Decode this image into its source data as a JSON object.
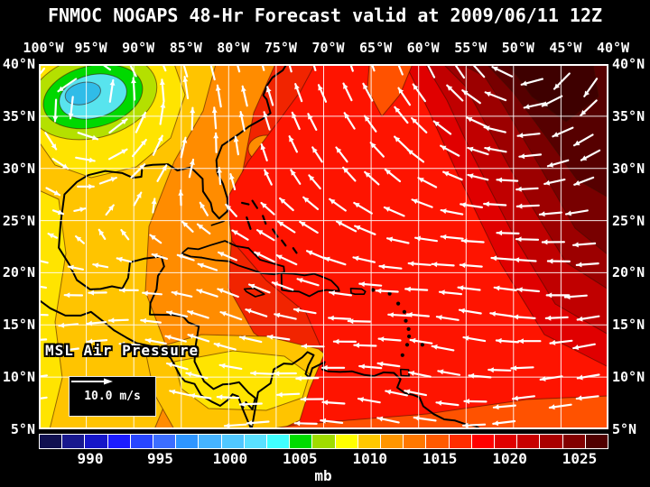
{
  "title": "FNMOC NOGAPS 48-Hr Forecast valid at 2009/06/11 12Z",
  "map": {
    "lon_ticks": [
      "100°W",
      "95°W",
      "90°W",
      "85°W",
      "80°W",
      "75°W",
      "70°W",
      "65°W",
      "60°W",
      "55°W",
      "50°W",
      "45°W",
      "40°W"
    ],
    "lat_ticks": [
      "40°N",
      "35°N",
      "30°N",
      "25°N",
      "20°N",
      "15°N",
      "10°N",
      "5°N"
    ],
    "field_label": "MSL Air Pressure",
    "wind_scale_label": "10.0 m/s",
    "coastlines": {
      "mainland": [
        [
          73.9,
          40
        ],
        [
          74.3,
          39.4
        ],
        [
          75.4,
          38.7
        ],
        [
          76,
          37.9
        ],
        [
          76.35,
          37
        ],
        [
          76,
          36.6
        ],
        [
          75.6,
          35.3
        ],
        [
          76.5,
          34.7
        ],
        [
          77.9,
          34
        ],
        [
          78.9,
          33.3
        ],
        [
          80.7,
          32.2
        ],
        [
          81.3,
          30.8
        ],
        [
          81.2,
          29.6
        ],
        [
          80.6,
          28.5
        ],
        [
          80.1,
          27
        ],
        [
          80.15,
          25.9
        ],
        [
          81,
          25.2
        ],
        [
          81.7,
          25.9
        ],
        [
          81.9,
          26.7
        ],
        [
          82.7,
          27.8
        ],
        [
          82.75,
          29
        ],
        [
          84,
          30.1
        ],
        [
          85.4,
          29.8
        ],
        [
          86.4,
          30.4
        ],
        [
          88,
          30.35
        ],
        [
          89.1,
          30.2
        ],
        [
          89.2,
          29.2
        ],
        [
          90.1,
          29.1
        ],
        [
          91.2,
          29.55
        ],
        [
          93,
          29.75
        ],
        [
          94.8,
          29.35
        ],
        [
          96,
          28.7
        ],
        [
          97.3,
          27.5
        ],
        [
          97.7,
          24.8
        ],
        [
          97.9,
          22.4
        ],
        [
          96.8,
          20.8
        ],
        [
          96,
          19.3
        ],
        [
          94.6,
          18.4
        ],
        [
          93.5,
          18.45
        ],
        [
          92.3,
          18.7
        ],
        [
          91.2,
          18.5
        ],
        [
          90.6,
          19.5
        ],
        [
          90.4,
          21
        ],
        [
          88.9,
          21.35
        ],
        [
          87.1,
          21.55
        ],
        [
          86.8,
          20.6
        ],
        [
          87.45,
          19.7
        ],
        [
          87.6,
          18.4
        ],
        [
          88.25,
          17.1
        ],
        [
          88.3,
          16
        ],
        [
          85.9,
          15.95
        ],
        [
          84.8,
          15.8
        ],
        [
          84.25,
          15.25
        ],
        [
          83.15,
          14.85
        ],
        [
          83.5,
          12.9
        ],
        [
          83.6,
          11.5
        ],
        [
          82.6,
          9.6
        ],
        [
          81.6,
          8.85
        ],
        [
          80.6,
          9.3
        ],
        [
          79.8,
          9.35
        ],
        [
          78.9,
          9.5
        ],
        [
          77.9,
          8.5
        ],
        [
          77.2,
          8
        ],
        [
          77.5,
          6.9
        ],
        [
          78.2,
          7.6
        ],
        [
          78.55,
          7
        ],
        [
          77.9,
          5.6
        ],
        [
          77.6,
          5
        ]
      ],
      "pacific": [
        [
          100,
          17.4
        ],
        [
          98.8,
          16.6
        ],
        [
          97.2,
          15.9
        ],
        [
          95.6,
          15.9
        ],
        [
          94.5,
          16.25
        ],
        [
          93.1,
          15.25
        ],
        [
          92.1,
          14.5
        ],
        [
          90.8,
          13.8
        ],
        [
          89.7,
          13.25
        ],
        [
          88.1,
          12.95
        ],
        [
          87,
          12.5
        ],
        [
          86.1,
          11.8
        ],
        [
          85.65,
          11.05
        ],
        [
          85.1,
          10.1
        ],
        [
          84.6,
          9.6
        ],
        [
          83.6,
          9.35
        ],
        [
          82.9,
          8.25
        ],
        [
          81.8,
          7.65
        ],
        [
          80.9,
          7.25
        ],
        [
          80.1,
          7.8
        ],
        [
          79.6,
          8.35
        ],
        [
          79,
          8.15
        ],
        [
          78.55,
          7
        ]
      ],
      "cuba": [
        [
          84.95,
          21.85
        ],
        [
          84.3,
          22.35
        ],
        [
          83.2,
          22.25
        ],
        [
          81.9,
          22.65
        ],
        [
          80.4,
          23.05
        ],
        [
          79.2,
          22.55
        ],
        [
          77.9,
          22.35
        ],
        [
          76.7,
          21.25
        ],
        [
          75.6,
          20.95
        ],
        [
          74.2,
          20.6
        ],
        [
          74.15,
          20.05
        ],
        [
          75.2,
          19.85
        ],
        [
          76.5,
          19.95
        ],
        [
          77.8,
          20.35
        ],
        [
          79,
          20.7
        ],
        [
          80,
          21.1
        ],
        [
          81.4,
          21.2
        ],
        [
          82.8,
          21.45
        ],
        [
          84,
          21.55
        ],
        [
          84.95,
          21.85
        ]
      ],
      "hispaniola": [
        [
          74.45,
          19.95
        ],
        [
          73.2,
          19.9
        ],
        [
          72,
          19.75
        ],
        [
          71,
          19.9
        ],
        [
          70.1,
          19.6
        ],
        [
          69.2,
          19.25
        ],
        [
          68.5,
          18.6
        ],
        [
          68.35,
          18.25
        ],
        [
          69.7,
          18.35
        ],
        [
          70.6,
          18.2
        ],
        [
          71.5,
          17.75
        ],
        [
          72.6,
          18.2
        ],
        [
          73.7,
          18.25
        ],
        [
          74.4,
          18.35
        ],
        [
          74.45,
          19.95
        ]
      ],
      "jamaica": [
        [
          78.35,
          18.45
        ],
        [
          77.3,
          18.5
        ],
        [
          76.25,
          17.95
        ],
        [
          77.2,
          17.7
        ],
        [
          78.15,
          18.2
        ],
        [
          78.35,
          18.45
        ]
      ],
      "puerto_rico": [
        [
          67.15,
          18.5
        ],
        [
          66,
          18.45
        ],
        [
          65.6,
          18.2
        ],
        [
          65.75,
          17.95
        ],
        [
          66.7,
          17.95
        ],
        [
          67.1,
          18.05
        ],
        [
          67.15,
          18.5
        ]
      ],
      "florida_keys": [
        [
          81.8,
          24.55
        ],
        [
          80.5,
          24.95
        ]
      ],
      "trinidad": [
        [
          61.9,
          10.75
        ],
        [
          61.05,
          10.7
        ],
        [
          61,
          10.1
        ],
        [
          61.85,
          10.15
        ],
        [
          61.9,
          10.75
        ]
      ],
      "south_america": [
        [
          77.6,
          5
        ],
        [
          77.4,
          6
        ],
        [
          76.9,
          8.55
        ],
        [
          75.6,
          9.4
        ],
        [
          75.25,
          10.75
        ],
        [
          74.2,
          11.3
        ],
        [
          73.3,
          11.25
        ],
        [
          72.25,
          11.9
        ],
        [
          71.7,
          12.4
        ],
        [
          71.05,
          12.1
        ],
        [
          71.6,
          11.15
        ],
        [
          71.9,
          10.3
        ],
        [
          71.5,
          9.95
        ],
        [
          71.2,
          10.85
        ],
        [
          70.2,
          11.3
        ],
        [
          69.9,
          11.45
        ],
        [
          70.15,
          10.75
        ],
        [
          69.5,
          10.55
        ],
        [
          68.3,
          10.5
        ],
        [
          67,
          10.55
        ],
        [
          65.7,
          10.2
        ],
        [
          64.7,
          10.1
        ],
        [
          63.7,
          10.45
        ],
        [
          62.6,
          10.4
        ],
        [
          61.9,
          9.8
        ],
        [
          62.25,
          9
        ],
        [
          61.4,
          8.45
        ],
        [
          60.6,
          8.3
        ],
        [
          59.9,
          8.05
        ],
        [
          59.5,
          7.2
        ],
        [
          58.4,
          6.45
        ],
        [
          57.3,
          5.95
        ],
        [
          56.2,
          5.85
        ],
        [
          55.1,
          5.5
        ],
        [
          54,
          5.3
        ],
        [
          53.4,
          5
        ]
      ],
      "bahamas_segments": [
        [
          [
            78.6,
            26.7
          ],
          [
            77.9,
            26.55
          ]
        ],
        [
          [
            77.5,
            26.9
          ],
          [
            77,
            26.2
          ]
        ],
        [
          [
            78.1,
            25.3
          ],
          [
            77.7,
            24.2
          ]
        ],
        [
          [
            76.4,
            25.45
          ],
          [
            76.1,
            24.7
          ]
        ],
        [
          [
            75.35,
            24.15
          ],
          [
            74.85,
            23.45
          ]
        ],
        [
          [
            74.4,
            23.1
          ],
          [
            74,
            22.6
          ]
        ],
        [
          [
            73.2,
            22.35
          ],
          [
            72.85,
            21.9
          ]
        ]
      ],
      "antilles_islets": [
        [
          61.5,
          16.25
        ],
        [
          61.35,
          15.4
        ],
        [
          61.05,
          14.6
        ],
        [
          61,
          13.9
        ],
        [
          61.2,
          13.1
        ],
        [
          61.7,
          12.1
        ],
        [
          62.15,
          17.05
        ],
        [
          63.05,
          18.0
        ],
        [
          64.8,
          18.35
        ],
        [
          59.6,
          13.1
        ]
      ]
    }
  },
  "colorbar": {
    "units_label": "mb",
    "ticks": [
      "990",
      "995",
      "1000",
      "1005",
      "1010",
      "1015",
      "1020",
      "1025"
    ],
    "segment_colors": [
      "#101050",
      "#18188e",
      "#1616c8",
      "#1c1cff",
      "#2846ff",
      "#3c6eff",
      "#2e96ff",
      "#46b4ff",
      "#50c8ff",
      "#5ae1ff",
      "#40ffff",
      "#00dc00",
      "#a0dc00",
      "#ffff00",
      "#ffc800",
      "#ff9600",
      "#ff7800",
      "#ff5a00",
      "#ff2d00",
      "#ff0000",
      "#e10000",
      "#c80000",
      "#aa0000",
      "#820000",
      "#500000"
    ]
  },
  "chart_data": {
    "type": "heatmap",
    "title": "FNMOC NOGAPS 48-Hr Forecast valid at 2009/06/11 12Z",
    "field": "MSL Air Pressure",
    "units": "mb",
    "x_axis": {
      "label_type": "longitude",
      "ticks_deg_west": [
        100,
        95,
        90,
        85,
        80,
        75,
        70,
        65,
        60,
        55,
        50,
        45,
        40
      ]
    },
    "y_axis": {
      "label_type": "latitude",
      "ticks_deg_north": [
        40,
        35,
        30,
        25,
        20,
        15,
        10,
        5
      ]
    },
    "grid": true,
    "colorbar_ticks_mb": [
      990,
      995,
      1000,
      1005,
      1010,
      1015,
      1020,
      1025
    ],
    "wind_reference_mps": 10.0,
    "pressure_features": [
      {
        "feature": "cut-off low with cyclonic winds",
        "approx_lon": "96°W",
        "approx_lat": "37°N",
        "approx_value_mb": 1000
      },
      {
        "feature": "Atlantic subtropical high (dark core, anticyclonic winds)",
        "approx_lon": "50°W",
        "approx_lat": "38°N",
        "approx_value_mb": 1026
      },
      {
        "feature": "Central American / SW Caribbean low",
        "approx_lon": "80°W",
        "approx_lat": "12°N",
        "approx_value_mb": 1008
      },
      {
        "feature": "easterly trade-wind belt across tropical Atlantic and Caribbean",
        "approx_value_mb": 1012
      }
    ]
  },
  "colors": {
    "page_bg": "#000000",
    "text": "#ffffff",
    "grid_line": "#ffffff",
    "coastline": "#000000",
    "legend_box_bg": "#000000",
    "field_base": "#f12400"
  }
}
